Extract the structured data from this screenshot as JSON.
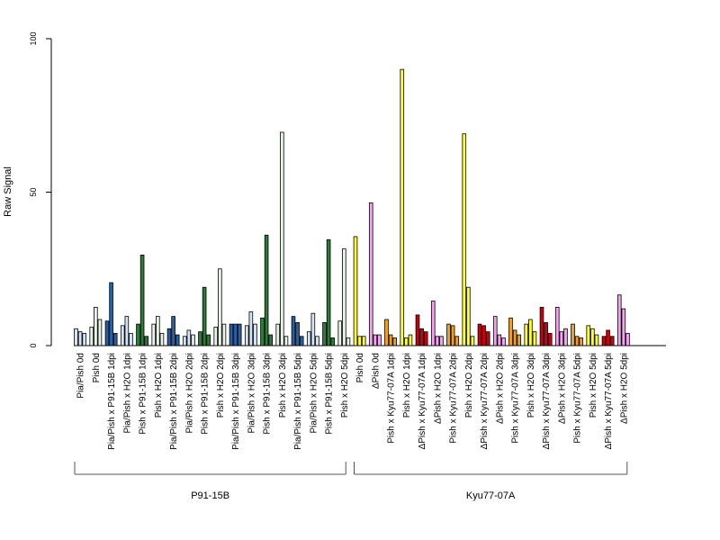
{
  "chart_data": {
    "type": "bar",
    "ylabel": "Raw Signal",
    "ylim": [
      0,
      100
    ],
    "yticks": [
      "0",
      "50",
      "100"
    ],
    "grid": false,
    "legend": "none",
    "categories": [
      "Pia/Pish 0d",
      "Pish 0d",
      "Pia/Pish x P91-15B 1dpi",
      "Pia/Pish x H2O 1dpi",
      "Pish x P91-15B 1dpi",
      "Pish x H2O 1dpi",
      "Pia/Pish x P91-15B 2dpi",
      "Pia/Pish x H2O 2dpi",
      "Pish x P91-15B 2dpi",
      "Pish x H2O 2dpi",
      "Pia/Pish x P91-15B 3dpi",
      "Pia/Pish x H2O 3dpi",
      "Pish x P91-15B 3dpi",
      "Pish x H2O 3dpi",
      "Pia/Pish x P91-15B 5dpi",
      "Pia/Pish x H2O 5dpi",
      "Pish x P91-15B 5dpi",
      "Pish x H2O 5dpi",
      "Pish 0d",
      "ΔPish 0d",
      "Pish x Kyu77-07A 1dpi",
      "Pish x H2O 1dpi",
      "ΔPish x Kyu77-07A 1dpi",
      "ΔPish x H2O 1dpi",
      "Pish x Kyu77-07A 2dpi",
      "Pish x H2O 2dpi",
      "ΔPish x Kyu77-07A 2dpi",
      "ΔPish x H2O 2dpi",
      "Pish x Kyu77-07A 3dpi",
      "Pish x H2O 3dpi",
      "ΔPish x Kyu77-07A 3dpi",
      "ΔPish x H2O 3dpi",
      "Pish x Kyu77-07A 5dpi",
      "Pish x H2O 5dpi",
      "ΔPish x Kyu77-07A 5dpi",
      "ΔPish x H2O 5dpi"
    ],
    "groups": [
      {
        "label": "P91-15B",
        "first": 0,
        "last": 17
      },
      {
        "label": "Kyu77-07A",
        "first": 18,
        "last": 35
      }
    ],
    "values": [
      [
        5.5,
        4.5,
        4.0
      ],
      [
        6.0,
        12.5,
        8.5
      ],
      [
        8.0,
        20.5,
        4.0
      ],
      [
        6.5,
        9.5,
        4.0
      ],
      [
        7.0,
        29.5,
        3.0
      ],
      [
        7.0,
        9.5,
        4.0
      ],
      [
        5.5,
        9.5,
        3.5
      ],
      [
        3.0,
        5.0,
        3.5
      ],
      [
        4.5,
        19.0,
        3.5
      ],
      [
        6.0,
        25.0,
        7.0
      ],
      [
        7.0,
        7.0,
        7.0
      ],
      [
        6.5,
        11.0,
        7.0
      ],
      [
        9.0,
        36.0,
        3.5
      ],
      [
        7.0,
        69.5,
        3.0
      ],
      [
        9.5,
        7.5,
        3.0
      ],
      [
        4.5,
        10.5,
        3.0
      ],
      [
        7.5,
        34.5,
        2.5
      ],
      [
        8.0,
        31.5,
        2.5
      ],
      [
        35.5,
        3.0,
        3.0
      ],
      [
        46.5,
        3.5,
        3.5
      ],
      [
        8.5,
        3.5,
        2.5
      ],
      [
        90.0,
        2.5,
        3.5
      ],
      [
        10.0,
        5.5,
        4.5
      ],
      [
        14.5,
        3.0,
        3.0
      ],
      [
        7.0,
        6.5,
        3.0
      ],
      [
        69.0,
        19.0,
        3.0
      ],
      [
        7.0,
        6.5,
        4.5
      ],
      [
        9.5,
        3.5,
        2.5
      ],
      [
        9.0,
        5.0,
        3.5
      ],
      [
        7.0,
        8.5,
        4.5
      ],
      [
        12.5,
        7.5,
        4.0
      ],
      [
        12.5,
        4.5,
        5.5
      ],
      [
        7.0,
        3.0,
        2.5
      ],
      [
        6.5,
        5.5,
        3.5
      ],
      [
        3.0,
        5.0,
        3.0
      ],
      [
        16.5,
        12.0,
        4.0
      ]
    ],
    "colors": [
      [
        "#d4e4f4",
        "#d4e4f4",
        "#d4e4f4"
      ],
      [
        "#e8f4e8",
        "#e8f4e8",
        "#e8f4e8"
      ],
      [
        "#2a5fa5",
        "#2a5fa5",
        "#2a5fa5"
      ],
      [
        "#d4e4f4",
        "#d4e4f4",
        "#d4e4f4"
      ],
      [
        "#2d7a3a",
        "#2d7a3a",
        "#2d7a3a"
      ],
      [
        "#e8f4e8",
        "#e8f4e8",
        "#e8f4e8"
      ],
      [
        "#2a5fa5",
        "#2a5fa5",
        "#2a5fa5"
      ],
      [
        "#d4e4f4",
        "#d4e4f4",
        "#d4e4f4"
      ],
      [
        "#2d7a3a",
        "#2d7a3a",
        "#2d7a3a"
      ],
      [
        "#e8f4e8",
        "#e8f4e8",
        "#e8f4e8"
      ],
      [
        "#2a5fa5",
        "#2a5fa5",
        "#2a5fa5"
      ],
      [
        "#d4e4f4",
        "#d4e4f4",
        "#d4e4f4"
      ],
      [
        "#2d7a3a",
        "#2d7a3a",
        "#2d7a3a"
      ],
      [
        "#e8f4e8",
        "#e8f4e8",
        "#e8f4e8"
      ],
      [
        "#2a5fa5",
        "#2a5fa5",
        "#2a5fa5"
      ],
      [
        "#d4e4f4",
        "#d4e4f4",
        "#d4e4f4"
      ],
      [
        "#2d7a3a",
        "#2d7a3a",
        "#2d7a3a"
      ],
      [
        "#e8f4e8",
        "#e8f4e8",
        "#e8f4e8"
      ],
      [
        "#ffff33",
        "#ffff33",
        "#ffff33"
      ],
      [
        "#f5a3f0",
        "#f5a3f0",
        "#f5a3f0"
      ],
      [
        "#f0a020",
        "#f0a020",
        "#f0a020"
      ],
      [
        "#ffff33",
        "#ffff33",
        "#ffff33"
      ],
      [
        "#cc0011",
        "#cc0011",
        "#cc0011"
      ],
      [
        "#f5a3f0",
        "#f5a3f0",
        "#f5a3f0"
      ],
      [
        "#f0a020",
        "#f0a020",
        "#f0a020"
      ],
      [
        "#ffff33",
        "#ffff33",
        "#ffff33"
      ],
      [
        "#cc0011",
        "#cc0011",
        "#cc0011"
      ],
      [
        "#f5a3f0",
        "#f5a3f0",
        "#f5a3f0"
      ],
      [
        "#f0a020",
        "#f0a020",
        "#f0a020"
      ],
      [
        "#ffff33",
        "#ffff33",
        "#ffff33"
      ],
      [
        "#cc0011",
        "#cc0011",
        "#cc0011"
      ],
      [
        "#f5a3f0",
        "#f5a3f0",
        "#f5a3f0"
      ],
      [
        "#f0a020",
        "#f0a020",
        "#f0a020"
      ],
      [
        "#ffff33",
        "#ffff33",
        "#ffff33"
      ],
      [
        "#cc0011",
        "#cc0011",
        "#cc0011"
      ],
      [
        "#f5a3f0",
        "#f5a3f0",
        "#f5a3f0"
      ]
    ]
  }
}
